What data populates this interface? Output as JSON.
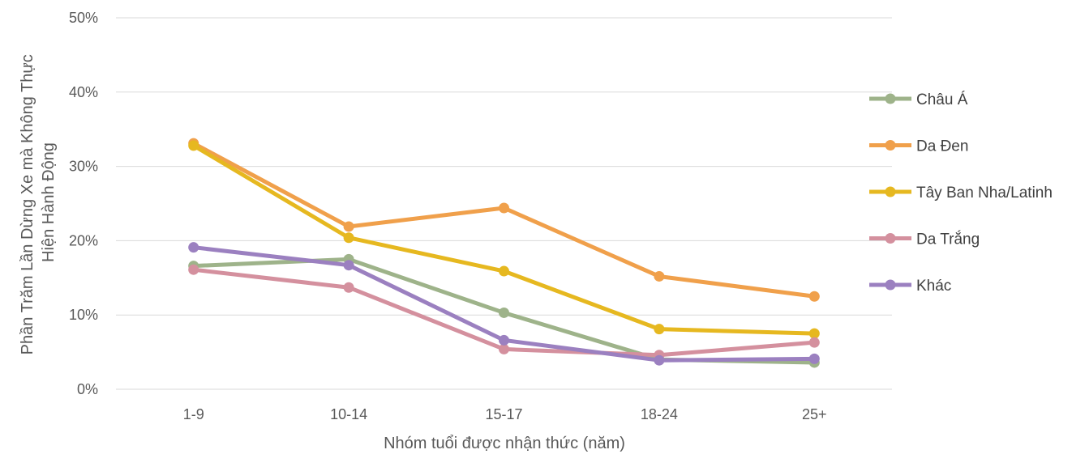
{
  "chart_data": {
    "type": "line",
    "title": "",
    "xlabel": "Nhóm tuổi được nhận thức (năm)",
    "ylabel_lines": [
      "Phần Trăm Lần Dừng Xe mà Không Thực",
      "Hiện Hành Động"
    ],
    "categories": [
      "1-9",
      "10-14",
      "15-17",
      "18-24",
      "25+"
    ],
    "ylim": [
      0,
      50
    ],
    "yticks": [
      0,
      10,
      20,
      30,
      40,
      50
    ],
    "ytick_labels": [
      "0%",
      "10%",
      "20%",
      "30%",
      "40%",
      "50%"
    ],
    "grid": true,
    "legend_position": "right",
    "series": [
      {
        "name": "Châu Á",
        "color": "#9eb38a",
        "values": [
          16.6,
          17.5,
          10.3,
          4.0,
          3.6
        ]
      },
      {
        "name": "Da Đen",
        "color": "#f0a04b",
        "values": [
          33.1,
          21.9,
          24.4,
          15.2,
          12.5
        ]
      },
      {
        "name": "Tây Ban Nha/Latinh",
        "color": "#e6b820",
        "values": [
          32.8,
          20.4,
          15.9,
          8.1,
          7.5
        ]
      },
      {
        "name": "Da Trắng",
        "color": "#d4909e",
        "values": [
          16.1,
          13.7,
          5.4,
          4.6,
          6.3
        ]
      },
      {
        "name": "Khác",
        "color": "#9b80c0",
        "values": [
          19.1,
          16.7,
          6.6,
          3.9,
          4.1
        ]
      }
    ]
  }
}
